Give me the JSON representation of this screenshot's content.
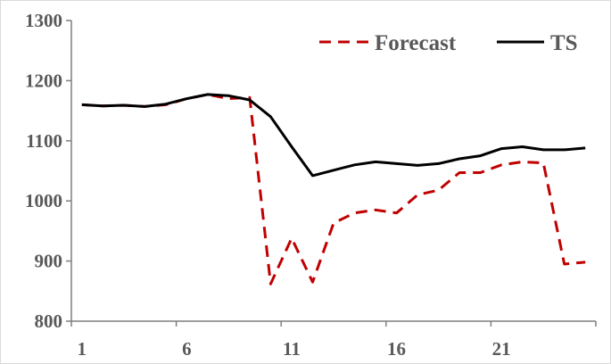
{
  "chart_data": {
    "type": "line",
    "title": "",
    "xlabel": "",
    "ylabel": "",
    "xlim": [
      1,
      25
    ],
    "ylim": [
      800,
      1300
    ],
    "x_tick_labels": [
      "1",
      "6",
      "11",
      "16",
      "21"
    ],
    "y_tick_labels": [
      "800",
      "900",
      "1000",
      "1100",
      "1200",
      "1300"
    ],
    "grid": false,
    "legend_position": "top-right",
    "x": [
      1,
      2,
      3,
      4,
      5,
      6,
      7,
      8,
      9,
      10,
      11,
      12,
      13,
      14,
      15,
      16,
      17,
      18,
      19,
      20,
      21,
      22,
      23,
      24,
      25
    ],
    "series": [
      {
        "name": "Forecast",
        "style": "dashed",
        "color": "#c00000",
        "values": [
          1160,
          1158,
          1159,
          1157,
          1160,
          1170,
          1177,
          1170,
          1172,
          862,
          938,
          865,
          963,
          980,
          985,
          980,
          1010,
          1018,
          1047,
          1047,
          1060,
          1065,
          1063,
          895,
          898
        ]
      },
      {
        "name": "TS",
        "style": "solid",
        "color": "#000000",
        "values": [
          1160,
          1158,
          1159,
          1157,
          1161,
          1170,
          1177,
          1175,
          1168,
          1140,
          1090,
          1042,
          1051,
          1060,
          1065,
          1062,
          1059,
          1062,
          1070,
          1075,
          1087,
          1090,
          1085,
          1085,
          1088
        ]
      }
    ]
  }
}
